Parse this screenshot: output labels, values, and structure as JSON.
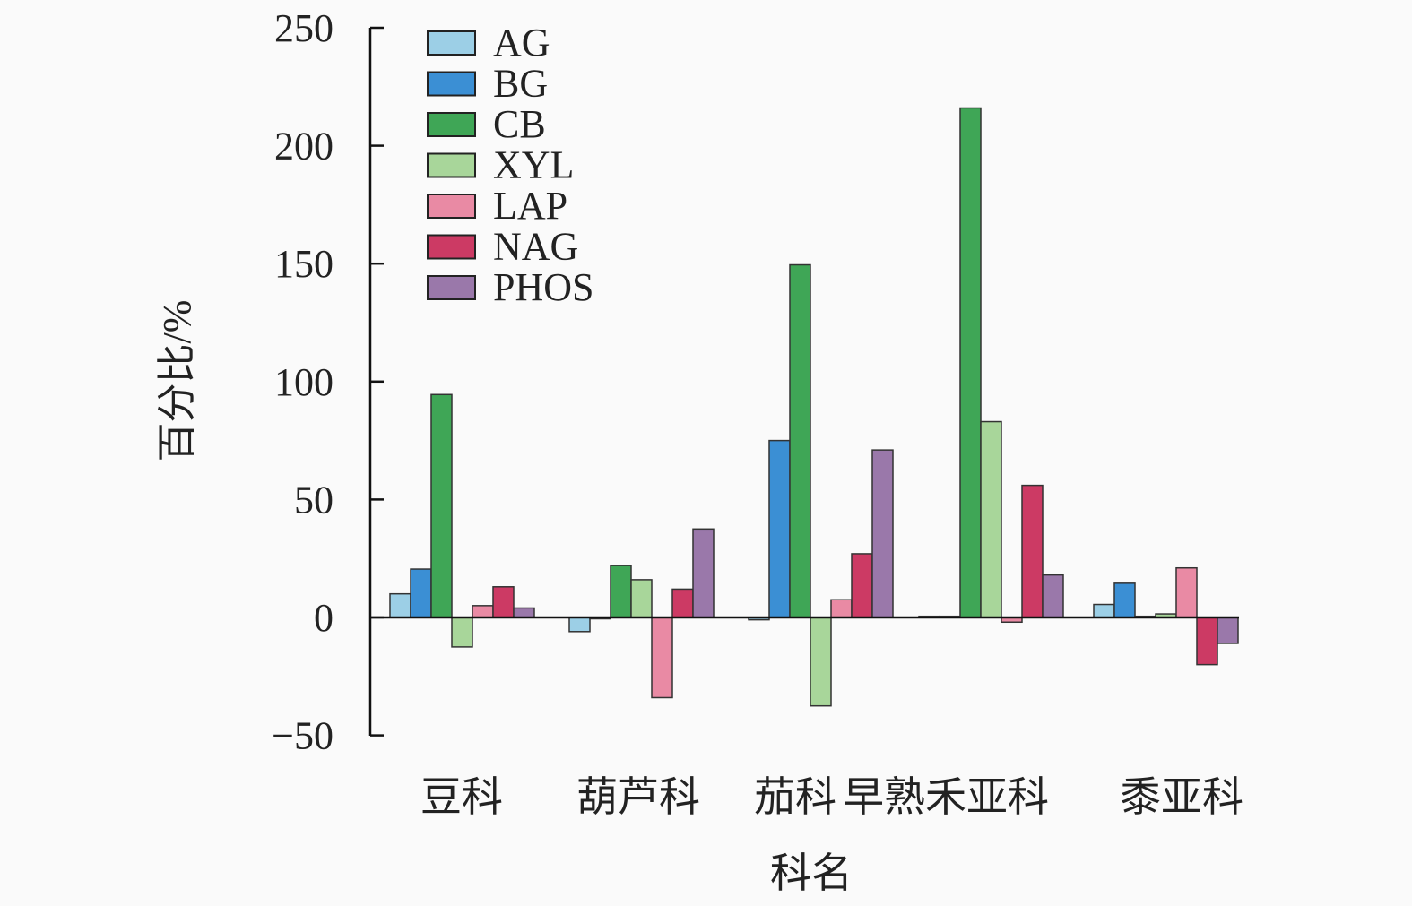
{
  "chart_data": {
    "type": "bar",
    "title": "",
    "xlabel": "科名",
    "ylabel": "百分比/%",
    "ylim": [
      -50,
      250
    ],
    "yticks": [
      -50,
      0,
      50,
      100,
      150,
      200,
      250
    ],
    "ytick_labels": [
      "−50",
      "0",
      "50",
      "100",
      "150",
      "200",
      "250"
    ],
    "grid": false,
    "legend_position": "top-left",
    "categories": [
      "豆科",
      "葫芦科",
      "茄科",
      "早熟禾亚科",
      "黍亚科"
    ],
    "series": [
      {
        "name": "AG",
        "color": "#9ccfe6",
        "values": [
          10,
          -6,
          -1,
          0.5,
          5.5
        ]
      },
      {
        "name": "BG",
        "color": "#3b8fd4",
        "values": [
          20.5,
          0,
          75,
          0.5,
          14.5
        ]
      },
      {
        "name": "CB",
        "color": "#3fa656",
        "values": [
          94.5,
          22,
          149.5,
          216,
          0.5
        ]
      },
      {
        "name": "XYL",
        "color": "#a8d69a",
        "values": [
          -12.5,
          16,
          -37.5,
          83,
          1.5
        ]
      },
      {
        "name": "LAP",
        "color": "#e98aa4",
        "values": [
          5,
          -34,
          7.5,
          -2,
          21
        ]
      },
      {
        "name": "NAG",
        "color": "#cc3a64",
        "values": [
          13,
          12,
          27,
          56,
          -20
        ]
      },
      {
        "name": "PHOS",
        "color": "#9a78aa",
        "values": [
          4,
          37.5,
          71,
          18,
          -11
        ]
      }
    ]
  }
}
